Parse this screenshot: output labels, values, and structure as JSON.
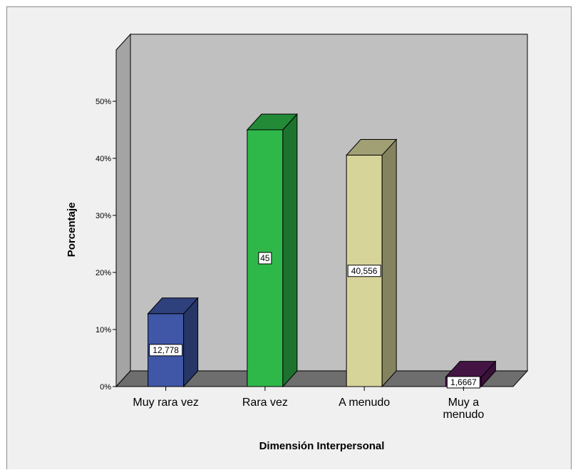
{
  "chart_data": {
    "type": "bar",
    "three_d": true,
    "categories": [
      "Muy rara vez",
      "Rara vez",
      "A menudo",
      "Muy a menudo"
    ],
    "category_label_lines": [
      [
        "Muy rara vez"
      ],
      [
        "Rara vez"
      ],
      [
        "A menudo"
      ],
      [
        "Muy a",
        "menudo"
      ]
    ],
    "values": [
      12.778,
      45,
      40.556,
      1.6667
    ],
    "data_labels": [
      "12,778",
      "45",
      "40,556",
      "1,6667"
    ],
    "ylim": [
      0,
      50
    ],
    "yticks": [
      0,
      10,
      20,
      30,
      40,
      50
    ],
    "ytick_labels": [
      "0%",
      "10%",
      "20%",
      "30%",
      "40%",
      "50%"
    ],
    "xlabel": "Dimensión Interpersonal",
    "ylabel": "Porcentaje",
    "grid": false,
    "colors": {
      "bars": [
        "#3f57a6",
        "#2fb84a",
        "#d7d49a",
        "#5a1a5a"
      ],
      "wall": "#c0c0c0",
      "floor": "#6e6e6e",
      "background": "#f0f0f0"
    }
  }
}
